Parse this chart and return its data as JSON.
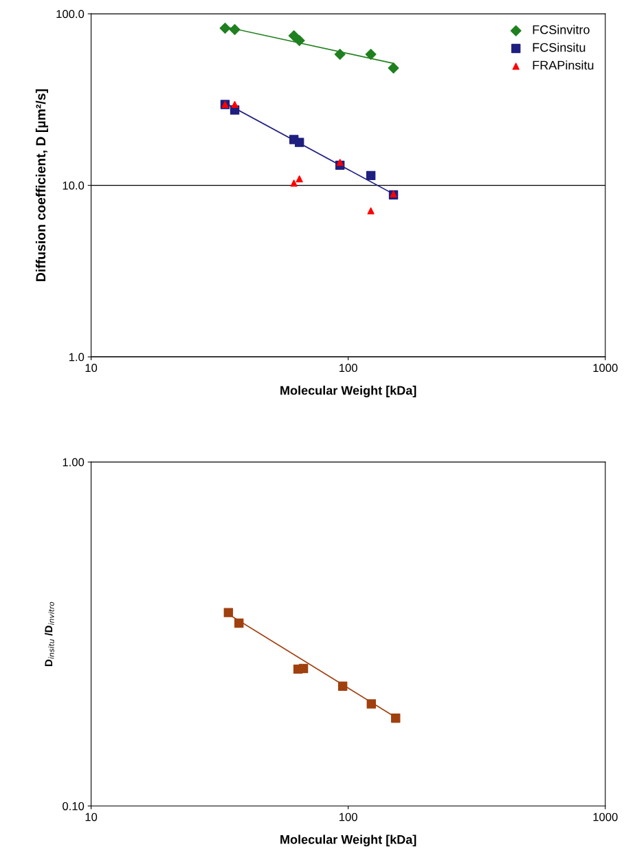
{
  "chart_data": [
    {
      "type": "scatter",
      "xlabel": "Molecular Weight [kDa]",
      "ylabel": "Diffusion coefficient, D [µm²/s]",
      "log": "xy",
      "xlim": [
        10,
        1000
      ],
      "ylim": [
        1,
        100
      ],
      "xticks": [
        10,
        100,
        1000
      ],
      "yticks": [
        {
          "value": 1,
          "label": "1.0"
        },
        {
          "value": 10,
          "label": "10.0"
        },
        {
          "value": 100,
          "label": "100.0"
        }
      ],
      "grid": "y",
      "legend": "top right",
      "series": [
        {
          "name": "FCSinvitro",
          "color": "#208020",
          "marker": "diamond",
          "x": [
            33.2,
            36.2,
            61.5,
            64.6,
            92.9,
            122.5,
            150
          ],
          "values": [
            82.4,
            80.9,
            74.5,
            69.8,
            58.0,
            58.0,
            48.3
          ]
        },
        {
          "name": "FCSinsitu",
          "color": "#1f1f80",
          "marker": "square",
          "x": [
            33.2,
            36.2,
            61.5,
            64.6,
            92.9,
            122.5,
            150
          ],
          "values": [
            29.6,
            27.5,
            18.5,
            17.8,
            13.1,
            11.4,
            8.8
          ]
        },
        {
          "name": "FRAPinsitu",
          "color": "#ff0000",
          "marker": "triangle",
          "x": [
            33.2,
            36.2,
            61.5,
            64.6,
            92.9,
            122.5,
            150
          ],
          "values": [
            29.6,
            29.6,
            10.3,
            10.9,
            13.6,
            7.1,
            8.9
          ]
        },
        {
          "type": "line",
          "color": "#208020",
          "marker": "none",
          "x": [
            33.2,
            150
          ],
          "values": [
            84,
            51.4
          ]
        },
        {
          "type": "line",
          "color": "#1f1f80",
          "marker": "none",
          "x": [
            33.2,
            150
          ],
          "values": [
            30.2,
            8.9
          ]
        }
      ]
    },
    {
      "type": "scatter",
      "xlabel": "Molecular Weight [kDa]",
      "ylabel": "D$_{insitu}$ /D$_{invitro}$",
      "log": "xy",
      "xlim": [
        10,
        1000
      ],
      "ylim": [
        0.1,
        1
      ],
      "xticks": [
        10,
        100,
        1000
      ],
      "yticks": [
        {
          "value": 0.1,
          "label": "0.10"
        },
        {
          "value": 1,
          "label": "1.00"
        }
      ],
      "grid": false,
      "legend": false,
      "series": [
        {
          "color": "#a0400f",
          "marker": "square",
          "x": [
            34.2,
            37.6,
            63.8,
            67.0,
            95.2,
            123,
            153
          ],
          "values": [
            0.365,
            0.34,
            0.25,
            0.251,
            0.223,
            0.198,
            0.18
          ]
        },
        {
          "type": "line",
          "color": "#a0400f",
          "marker": "none",
          "x": [
            34.2,
            153
          ],
          "values": [
            0.361,
            0.181
          ]
        }
      ]
    }
  ]
}
